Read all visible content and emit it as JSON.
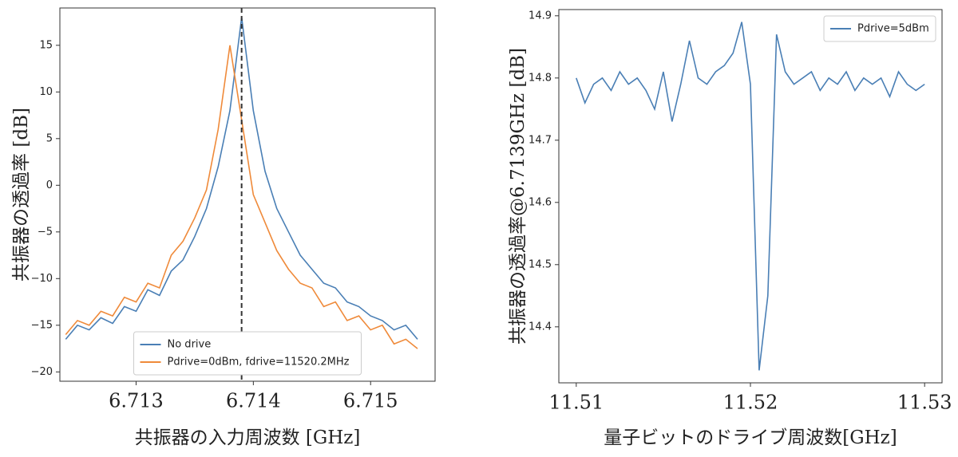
{
  "chart_data": [
    {
      "type": "line",
      "xlabel": "共振器の入力周波数 [GHz]",
      "ylabel": "共振器の透過率 [dB]",
      "x": [
        6.7124,
        6.7125,
        6.7126,
        6.7127,
        6.7128,
        6.7129,
        6.713,
        6.7131,
        6.7132,
        6.7133,
        6.7134,
        6.7135,
        6.7136,
        6.7137,
        6.7138,
        6.7139,
        6.714,
        6.7141,
        6.7142,
        6.7143,
        6.7144,
        6.7145,
        6.7146,
        6.7147,
        6.7148,
        6.7149,
        6.715,
        6.7151,
        6.7152,
        6.7153,
        6.7154
      ],
      "series": [
        {
          "name": "No drive",
          "color": "#4a7fb5",
          "values": [
            -16.5,
            -15,
            -15.5,
            -14.2,
            -14.8,
            -13,
            -13.5,
            -11.2,
            -11.8,
            -9.2,
            -8,
            -5.5,
            -2.5,
            2,
            8,
            18,
            8,
            1.5,
            -2.5,
            -5,
            -7.5,
            -9,
            -10.5,
            -11,
            -12.5,
            -13,
            -14,
            -14.5,
            -15.5,
            -15,
            -16.5
          ]
        },
        {
          "name": "Pdrive=0dBm,  fdrive=11520.2MHz",
          "color": "#ef8a3a",
          "values": [
            -16,
            -14.5,
            -15,
            -13.5,
            -14,
            -12,
            -12.5,
            -10.5,
            -11,
            -7.5,
            -6,
            -3.5,
            -0.5,
            6,
            15,
            7,
            -1,
            -4,
            -7,
            -9,
            -10.5,
            -11,
            -13,
            -12.5,
            -14.5,
            -14,
            -15.5,
            -15,
            -17,
            -16.5,
            -17.5
          ]
        }
      ],
      "vline": 6.7139,
      "xlim": [
        6.71235,
        6.71555
      ],
      "xticks": [
        6.713,
        6.714,
        6.715
      ],
      "ylim": [
        -21,
        19
      ],
      "yticks": [
        {
          "value": -20,
          "label": "−20"
        },
        {
          "value": -15,
          "label": "−15"
        },
        {
          "value": -10,
          "label": "−10"
        },
        {
          "value": -5,
          "label": "−5"
        },
        0,
        5,
        10,
        15
      ],
      "legend": "lower center"
    },
    {
      "type": "line",
      "xlabel": "量子ビットのドライブ周波数[GHz]",
      "ylabel": "共振器の透過率@6.7139GHz [dB]",
      "x": [
        11.51,
        11.5105,
        11.511,
        11.5115,
        11.512,
        11.5125,
        11.513,
        11.5135,
        11.514,
        11.5145,
        11.515,
        11.5155,
        11.516,
        11.5165,
        11.517,
        11.5175,
        11.518,
        11.5185,
        11.519,
        11.5195,
        11.52,
        11.5205,
        11.521,
        11.5215,
        11.522,
        11.5225,
        11.523,
        11.5235,
        11.524,
        11.5245,
        11.525,
        11.5255,
        11.526,
        11.5265,
        11.527,
        11.5275,
        11.528,
        11.5285,
        11.529,
        11.5295,
        11.53
      ],
      "series": [
        {
          "name": "Pdrive=5dBm",
          "color": "#4a7fb5",
          "values": [
            14.8,
            14.76,
            14.79,
            14.8,
            14.78,
            14.81,
            14.79,
            14.8,
            14.78,
            14.75,
            14.81,
            14.73,
            14.79,
            14.86,
            14.8,
            14.79,
            14.81,
            14.82,
            14.84,
            14.89,
            14.79,
            14.33,
            14.45,
            14.87,
            14.81,
            14.79,
            14.8,
            14.81,
            14.78,
            14.8,
            14.79,
            14.81,
            14.78,
            14.8,
            14.79,
            14.8,
            14.77,
            14.81,
            14.79,
            14.78,
            14.79
          ]
        }
      ],
      "xlim": [
        11.509,
        11.531
      ],
      "xticks": [
        11.51,
        11.52,
        11.53
      ],
      "ylim": [
        14.31,
        14.91
      ],
      "yticks": [
        14.4,
        14.5,
        14.6,
        14.7,
        14.8,
        14.9
      ],
      "legend": "upper right"
    }
  ]
}
